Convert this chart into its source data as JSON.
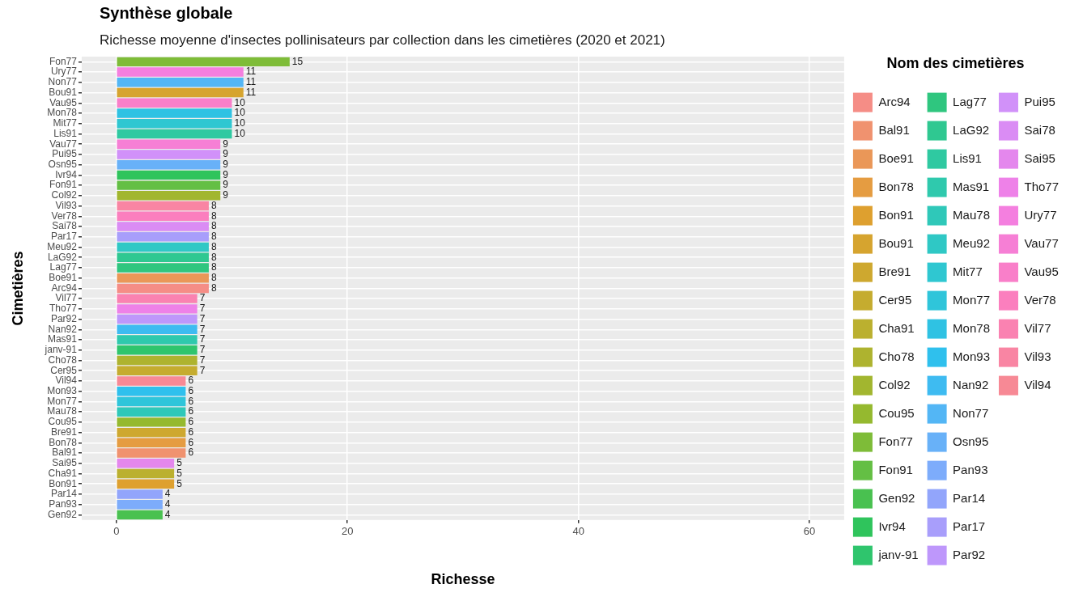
{
  "chart_data": {
    "type": "bar",
    "orientation": "horizontal",
    "title": "Synthèse globale",
    "subtitle": "Richesse moyenne d'insectes pollinisateurs par collection dans les cimetières (2020 et 2021)",
    "xlabel": "Richesse",
    "ylabel": "Cimetières",
    "legend_title": "Nom des cimetières",
    "legend": "right",
    "grid": true,
    "data_labels": true,
    "categories": [
      "Fon77",
      "Ury77",
      "Non77",
      "Bou91",
      "Vau95",
      "Mon78",
      "Mit77",
      "Lis91",
      "Vau77",
      "Pui95",
      "Osn95",
      "Ivr94",
      "Fon91",
      "Col92",
      "Vil93",
      "Ver78",
      "Sai78",
      "Par17",
      "Meu92",
      "LaG92",
      "Lag77",
      "Boe91",
      "Arc94",
      "Vil77",
      "Tho77",
      "Par92",
      "Nan92",
      "Mas91",
      "janv-91",
      "Cho78",
      "Cer95",
      "Vil94",
      "Mon93",
      "Mon77",
      "Mau78",
      "Cou95",
      "Bre91",
      "Bon78",
      "Bal91",
      "Sai95",
      "Cha91",
      "Bon91",
      "Par14",
      "Pan93",
      "Gen92"
    ],
    "series": [
      {
        "name": "Arc94",
        "color": "#F58D86",
        "values": [
          null,
          null,
          null,
          null,
          null,
          null,
          null,
          null,
          null,
          null,
          null,
          null,
          null,
          null,
          null,
          null,
          null,
          null,
          null,
          null,
          null,
          null,
          8,
          null,
          null,
          null,
          null,
          null,
          null,
          null,
          null,
          null,
          null,
          null,
          null,
          null,
          null,
          null,
          null,
          null,
          null,
          null,
          null,
          null,
          null
        ]
      },
      {
        "name": "Bal91",
        "color": "#F0926F",
        "values": [
          null,
          null,
          null,
          null,
          null,
          null,
          null,
          null,
          null,
          null,
          null,
          null,
          null,
          null,
          null,
          null,
          null,
          null,
          null,
          null,
          null,
          null,
          null,
          null,
          null,
          null,
          null,
          null,
          null,
          null,
          null,
          null,
          null,
          null,
          null,
          null,
          null,
          null,
          6,
          null,
          null,
          null,
          null,
          null,
          null
        ]
      },
      {
        "name": "Boe91",
        "color": "#EA9758",
        "values": [
          null,
          null,
          null,
          null,
          null,
          null,
          null,
          null,
          null,
          null,
          null,
          null,
          null,
          null,
          null,
          null,
          null,
          null,
          null,
          null,
          null,
          8,
          null,
          null,
          null,
          null,
          null,
          null,
          null,
          null,
          null,
          null,
          null,
          null,
          null,
          null,
          null,
          null,
          null,
          null,
          null,
          null,
          null,
          null,
          null
        ]
      },
      {
        "name": "Bon78",
        "color": "#E59C41",
        "values": [
          null,
          null,
          null,
          null,
          null,
          null,
          null,
          null,
          null,
          null,
          null,
          null,
          null,
          null,
          null,
          null,
          null,
          null,
          null,
          null,
          null,
          null,
          null,
          null,
          null,
          null,
          null,
          null,
          null,
          null,
          null,
          null,
          null,
          null,
          null,
          null,
          null,
          6,
          null,
          null,
          null,
          null,
          null,
          null,
          null
        ]
      },
      {
        "name": "Bon91",
        "color": "#DEA02F",
        "values": [
          null,
          null,
          null,
          null,
          null,
          null,
          null,
          null,
          null,
          null,
          null,
          null,
          null,
          null,
          null,
          null,
          null,
          null,
          null,
          null,
          null,
          null,
          null,
          null,
          null,
          null,
          null,
          null,
          null,
          null,
          null,
          null,
          null,
          null,
          null,
          null,
          null,
          null,
          null,
          null,
          null,
          5,
          null,
          null,
          null
        ]
      },
      {
        "name": "Bou91",
        "color": "#D6A42F",
        "values": [
          null,
          null,
          null,
          11,
          null,
          null,
          null,
          null,
          null,
          null,
          null,
          null,
          null,
          null,
          null,
          null,
          null,
          null,
          null,
          null,
          null,
          null,
          null,
          null,
          null,
          null,
          null,
          null,
          null,
          null,
          null,
          null,
          null,
          null,
          null,
          null,
          null,
          null,
          null,
          null,
          null,
          null,
          null,
          null,
          null
        ]
      },
      {
        "name": "Bre91",
        "color": "#CEA82F",
        "values": [
          null,
          null,
          null,
          null,
          null,
          null,
          null,
          null,
          null,
          null,
          null,
          null,
          null,
          null,
          null,
          null,
          null,
          null,
          null,
          null,
          null,
          null,
          null,
          null,
          null,
          null,
          null,
          null,
          null,
          null,
          null,
          null,
          null,
          null,
          null,
          null,
          6,
          null,
          null,
          null,
          null,
          null,
          null,
          null,
          null
        ]
      },
      {
        "name": "Cer95",
        "color": "#C5AC2F",
        "values": [
          null,
          null,
          null,
          null,
          null,
          null,
          null,
          null,
          null,
          null,
          null,
          null,
          null,
          null,
          null,
          null,
          null,
          null,
          null,
          null,
          null,
          null,
          null,
          null,
          null,
          null,
          null,
          null,
          null,
          null,
          7,
          null,
          null,
          null,
          null,
          null,
          null,
          null,
          null,
          null,
          null,
          null,
          null,
          null,
          null
        ]
      },
      {
        "name": "Cha91",
        "color": "#BBB02F",
        "values": [
          null,
          null,
          null,
          null,
          null,
          null,
          null,
          null,
          null,
          null,
          null,
          null,
          null,
          null,
          null,
          null,
          null,
          null,
          null,
          null,
          null,
          null,
          null,
          null,
          null,
          null,
          null,
          null,
          null,
          null,
          null,
          null,
          null,
          null,
          null,
          null,
          null,
          null,
          null,
          null,
          5,
          null,
          null,
          null,
          null
        ]
      },
      {
        "name": "Cho78",
        "color": "#AEB32F",
        "values": [
          null,
          null,
          null,
          null,
          null,
          null,
          null,
          null,
          null,
          null,
          null,
          null,
          null,
          null,
          null,
          null,
          null,
          null,
          null,
          null,
          null,
          null,
          null,
          null,
          null,
          null,
          null,
          null,
          null,
          7,
          null,
          null,
          null,
          null,
          null,
          null,
          null,
          null,
          null,
          null,
          null,
          null,
          null,
          null,
          null
        ]
      },
      {
        "name": "Col92",
        "color": "#A2B62F",
        "values": [
          null,
          null,
          null,
          null,
          null,
          null,
          null,
          null,
          null,
          null,
          null,
          null,
          null,
          9,
          null,
          null,
          null,
          null,
          null,
          null,
          null,
          null,
          null,
          null,
          null,
          null,
          null,
          null,
          null,
          null,
          null,
          null,
          null,
          null,
          null,
          null,
          null,
          null,
          null,
          null,
          null,
          null,
          null,
          null,
          null
        ]
      },
      {
        "name": "Cou95",
        "color": "#95B92F",
        "values": [
          null,
          null,
          null,
          null,
          null,
          null,
          null,
          null,
          null,
          null,
          null,
          null,
          null,
          null,
          null,
          null,
          null,
          null,
          null,
          null,
          null,
          null,
          null,
          null,
          null,
          null,
          null,
          null,
          null,
          null,
          null,
          null,
          null,
          null,
          null,
          6,
          null,
          null,
          null,
          null,
          null,
          null,
          null,
          null,
          null
        ]
      },
      {
        "name": "Fon77",
        "color": "#7EBC38",
        "values": [
          15,
          null,
          null,
          null,
          null,
          null,
          null,
          null,
          null,
          null,
          null,
          null,
          null,
          null,
          null,
          null,
          null,
          null,
          null,
          null,
          null,
          null,
          null,
          null,
          null,
          null,
          null,
          null,
          null,
          null,
          null,
          null,
          null,
          null,
          null,
          null,
          null,
          null,
          null,
          null,
          null,
          null,
          null,
          null,
          null
        ]
      },
      {
        "name": "Fon91",
        "color": "#64BF44",
        "values": [
          null,
          null,
          null,
          null,
          null,
          null,
          null,
          null,
          null,
          null,
          null,
          null,
          9,
          null,
          null,
          null,
          null,
          null,
          null,
          null,
          null,
          null,
          null,
          null,
          null,
          null,
          null,
          null,
          null,
          null,
          null,
          null,
          null,
          null,
          null,
          null,
          null,
          null,
          null,
          null,
          null,
          null,
          null,
          null,
          null
        ]
      },
      {
        "name": "Gen92",
        "color": "#49C150",
        "values": [
          null,
          null,
          null,
          null,
          null,
          null,
          null,
          null,
          null,
          null,
          null,
          null,
          null,
          null,
          null,
          null,
          null,
          null,
          null,
          null,
          null,
          null,
          null,
          null,
          null,
          null,
          null,
          null,
          null,
          null,
          null,
          null,
          null,
          null,
          null,
          null,
          null,
          null,
          null,
          null,
          null,
          null,
          null,
          null,
          4
        ]
      },
      {
        "name": "Ivr94",
        "color": "#2FC45C",
        "values": [
          null,
          null,
          null,
          null,
          null,
          null,
          null,
          null,
          null,
          null,
          null,
          9,
          null,
          null,
          null,
          null,
          null,
          null,
          null,
          null,
          null,
          null,
          null,
          null,
          null,
          null,
          null,
          null,
          null,
          null,
          null,
          null,
          null,
          null,
          null,
          null,
          null,
          null,
          null,
          null,
          null,
          null,
          null,
          null,
          null
        ]
      },
      {
        "name": "janv-91",
        "color": "#2FC56D",
        "values": [
          null,
          null,
          null,
          null,
          null,
          null,
          null,
          null,
          null,
          null,
          null,
          null,
          null,
          null,
          null,
          null,
          null,
          null,
          null,
          null,
          null,
          null,
          null,
          null,
          null,
          null,
          null,
          null,
          7,
          null,
          null,
          null,
          null,
          null,
          null,
          null,
          null,
          null,
          null,
          null,
          null,
          null,
          null,
          null,
          null
        ]
      },
      {
        "name": "Lag77",
        "color": "#2FC67F",
        "values": [
          null,
          null,
          null,
          null,
          null,
          null,
          null,
          null,
          null,
          null,
          null,
          null,
          null,
          null,
          null,
          null,
          null,
          null,
          null,
          null,
          8,
          null,
          null,
          null,
          null,
          null,
          null,
          null,
          null,
          null,
          null,
          null,
          null,
          null,
          null,
          null,
          null,
          null,
          null,
          null,
          null,
          null,
          null,
          null,
          null
        ]
      },
      {
        "name": "LaG92",
        "color": "#2FC891",
        "values": [
          null,
          null,
          null,
          null,
          null,
          null,
          null,
          null,
          null,
          null,
          null,
          null,
          null,
          null,
          null,
          null,
          null,
          null,
          null,
          8,
          null,
          null,
          null,
          null,
          null,
          null,
          null,
          null,
          null,
          null,
          null,
          null,
          null,
          null,
          null,
          null,
          null,
          null,
          null,
          null,
          null,
          null,
          null,
          null,
          null
        ]
      },
      {
        "name": "Lis91",
        "color": "#2FC9A1",
        "values": [
          null,
          null,
          null,
          null,
          null,
          null,
          null,
          10,
          null,
          null,
          null,
          null,
          null,
          null,
          null,
          null,
          null,
          null,
          null,
          null,
          null,
          null,
          null,
          null,
          null,
          null,
          null,
          null,
          null,
          null,
          null,
          null,
          null,
          null,
          null,
          null,
          null,
          null,
          null,
          null,
          null,
          null,
          null,
          null,
          null
        ]
      },
      {
        "name": "Mas91",
        "color": "#2FC9AD",
        "values": [
          null,
          null,
          null,
          null,
          null,
          null,
          null,
          null,
          null,
          null,
          null,
          null,
          null,
          null,
          null,
          null,
          null,
          null,
          null,
          null,
          null,
          null,
          null,
          null,
          null,
          null,
          null,
          7,
          null,
          null,
          null,
          null,
          null,
          null,
          null,
          null,
          null,
          null,
          null,
          null,
          null,
          null,
          null,
          null,
          null
        ]
      },
      {
        "name": "Mau78",
        "color": "#2FC8B9",
        "values": [
          null,
          null,
          null,
          null,
          null,
          null,
          null,
          null,
          null,
          null,
          null,
          null,
          null,
          null,
          null,
          null,
          null,
          null,
          null,
          null,
          null,
          null,
          null,
          null,
          null,
          null,
          null,
          null,
          null,
          null,
          null,
          null,
          null,
          null,
          6,
          null,
          null,
          null,
          null,
          null,
          null,
          null,
          null,
          null,
          null
        ]
      },
      {
        "name": "Meu92",
        "color": "#2FC8C5",
        "values": [
          null,
          null,
          null,
          null,
          null,
          null,
          null,
          null,
          null,
          null,
          null,
          null,
          null,
          null,
          null,
          null,
          null,
          null,
          8,
          null,
          null,
          null,
          null,
          null,
          null,
          null,
          null,
          null,
          null,
          null,
          null,
          null,
          null,
          null,
          null,
          null,
          null,
          null,
          null,
          null,
          null,
          null,
          null,
          null,
          null
        ]
      },
      {
        "name": "Mit77",
        "color": "#2FC7D1",
        "values": [
          null,
          null,
          null,
          null,
          null,
          null,
          10,
          null,
          null,
          null,
          null,
          null,
          null,
          null,
          null,
          null,
          null,
          null,
          null,
          null,
          null,
          null,
          null,
          null,
          null,
          null,
          null,
          null,
          null,
          null,
          null,
          null,
          null,
          null,
          null,
          null,
          null,
          null,
          null,
          null,
          null,
          null,
          null,
          null,
          null
        ]
      },
      {
        "name": "Mon77",
        "color": "#2FC5DA",
        "values": [
          null,
          null,
          null,
          null,
          null,
          null,
          null,
          null,
          null,
          null,
          null,
          null,
          null,
          null,
          null,
          null,
          null,
          null,
          null,
          null,
          null,
          null,
          null,
          null,
          null,
          null,
          null,
          null,
          null,
          null,
          null,
          null,
          null,
          6,
          null,
          null,
          null,
          null,
          null,
          null,
          null,
          null,
          null,
          null,
          null
        ]
      },
      {
        "name": "Mon78",
        "color": "#2FC2E3",
        "values": [
          null,
          null,
          null,
          null,
          null,
          10,
          null,
          null,
          null,
          null,
          null,
          null,
          null,
          null,
          null,
          null,
          null,
          null,
          null,
          null,
          null,
          null,
          null,
          null,
          null,
          null,
          null,
          null,
          null,
          null,
          null,
          null,
          null,
          null,
          null,
          null,
          null,
          null,
          null,
          null,
          null,
          null,
          null,
          null,
          null
        ]
      },
      {
        "name": "Mon93",
        "color": "#2FC0ED",
        "values": [
          null,
          null,
          null,
          null,
          null,
          null,
          null,
          null,
          null,
          null,
          null,
          null,
          null,
          null,
          null,
          null,
          null,
          null,
          null,
          null,
          null,
          null,
          null,
          null,
          null,
          null,
          null,
          null,
          null,
          null,
          null,
          null,
          6,
          null,
          null,
          null,
          null,
          null,
          null,
          null,
          null,
          null,
          null,
          null,
          null
        ]
      },
      {
        "name": "Nan92",
        "color": "#3EBBF1",
        "values": [
          null,
          null,
          null,
          null,
          null,
          null,
          null,
          null,
          null,
          null,
          null,
          null,
          null,
          null,
          null,
          null,
          null,
          null,
          null,
          null,
          null,
          null,
          null,
          null,
          null,
          null,
          7,
          null,
          null,
          null,
          null,
          null,
          null,
          null,
          null,
          null,
          null,
          null,
          null,
          null,
          null,
          null,
          null,
          null,
          null
        ]
      },
      {
        "name": "Non77",
        "color": "#53B6F5",
        "values": [
          null,
          null,
          11,
          null,
          null,
          null,
          null,
          null,
          null,
          null,
          null,
          null,
          null,
          null,
          null,
          null,
          null,
          null,
          null,
          null,
          null,
          null,
          null,
          null,
          null,
          null,
          null,
          null,
          null,
          null,
          null,
          null,
          null,
          null,
          null,
          null,
          null,
          null,
          null,
          null,
          null,
          null,
          null,
          null,
          null
        ]
      },
      {
        "name": "Osn95",
        "color": "#68B1F8",
        "values": [
          null,
          null,
          null,
          null,
          null,
          null,
          null,
          null,
          null,
          null,
          9,
          null,
          null,
          null,
          null,
          null,
          null,
          null,
          null,
          null,
          null,
          null,
          null,
          null,
          null,
          null,
          null,
          null,
          null,
          null,
          null,
          null,
          null,
          null,
          null,
          null,
          null,
          null,
          null,
          null,
          null,
          null,
          null,
          null,
          null
        ]
      },
      {
        "name": "Pan93",
        "color": "#7DACFB",
        "values": [
          null,
          null,
          null,
          null,
          null,
          null,
          null,
          null,
          null,
          null,
          null,
          null,
          null,
          null,
          null,
          null,
          null,
          null,
          null,
          null,
          null,
          null,
          null,
          null,
          null,
          null,
          null,
          null,
          null,
          null,
          null,
          null,
          null,
          null,
          null,
          null,
          null,
          null,
          null,
          null,
          null,
          null,
          null,
          4,
          null
        ]
      },
      {
        "name": "Par14",
        "color": "#92A5FB",
        "values": [
          null,
          null,
          null,
          null,
          null,
          null,
          null,
          null,
          null,
          null,
          null,
          null,
          null,
          null,
          null,
          null,
          null,
          null,
          null,
          null,
          null,
          null,
          null,
          null,
          null,
          null,
          null,
          null,
          null,
          null,
          null,
          null,
          null,
          null,
          null,
          null,
          null,
          null,
          null,
          null,
          null,
          null,
          4,
          null,
          null
        ]
      },
      {
        "name": "Par17",
        "color": "#A89EFB",
        "values": [
          null,
          null,
          null,
          null,
          null,
          null,
          null,
          null,
          null,
          null,
          null,
          null,
          null,
          null,
          null,
          null,
          null,
          8,
          null,
          null,
          null,
          null,
          null,
          null,
          null,
          null,
          null,
          null,
          null,
          null,
          null,
          null,
          null,
          null,
          null,
          null,
          null,
          null,
          null,
          null,
          null,
          null,
          null,
          null,
          null
        ]
      },
      {
        "name": "Par92",
        "color": "#BE97FB",
        "values": [
          null,
          null,
          null,
          null,
          null,
          null,
          null,
          null,
          null,
          null,
          null,
          null,
          null,
          null,
          null,
          null,
          null,
          null,
          null,
          null,
          null,
          null,
          null,
          null,
          null,
          7,
          null,
          null,
          null,
          null,
          null,
          null,
          null,
          null,
          null,
          null,
          null,
          null,
          null,
          null,
          null,
          null,
          null,
          null,
          null
        ]
      },
      {
        "name": "Pui95",
        "color": "#D191F9",
        "values": [
          null,
          null,
          null,
          null,
          null,
          null,
          null,
          null,
          null,
          9,
          null,
          null,
          null,
          null,
          null,
          null,
          null,
          null,
          null,
          null,
          null,
          null,
          null,
          null,
          null,
          null,
          null,
          null,
          null,
          null,
          null,
          null,
          null,
          null,
          null,
          null,
          null,
          null,
          null,
          null,
          null,
          null,
          null,
          null,
          null
        ]
      },
      {
        "name": "Sai78",
        "color": "#DA8CF4",
        "values": [
          null,
          null,
          null,
          null,
          null,
          null,
          null,
          null,
          null,
          null,
          null,
          null,
          null,
          null,
          null,
          null,
          8,
          null,
          null,
          null,
          null,
          null,
          null,
          null,
          null,
          null,
          null,
          null,
          null,
          null,
          null,
          null,
          null,
          null,
          null,
          null,
          null,
          null,
          null,
          null,
          null,
          null,
          null,
          null,
          null
        ]
      },
      {
        "name": "Sai95",
        "color": "#E487ED",
        "values": [
          null,
          null,
          null,
          null,
          null,
          null,
          null,
          null,
          null,
          null,
          null,
          null,
          null,
          null,
          null,
          null,
          null,
          null,
          null,
          null,
          null,
          null,
          null,
          null,
          null,
          null,
          null,
          null,
          null,
          null,
          null,
          null,
          null,
          null,
          null,
          null,
          null,
          null,
          null,
          5,
          null,
          null,
          null,
          null,
          null
        ]
      },
      {
        "name": "Tho77",
        "color": "#EE81E8",
        "values": [
          null,
          null,
          null,
          null,
          null,
          null,
          null,
          null,
          null,
          null,
          null,
          null,
          null,
          null,
          null,
          null,
          null,
          null,
          null,
          null,
          null,
          null,
          null,
          null,
          7,
          null,
          null,
          null,
          null,
          null,
          null,
          null,
          null,
          null,
          null,
          null,
          null,
          null,
          null,
          null,
          null,
          null,
          null,
          null,
          null
        ]
      },
      {
        "name": "Ury77",
        "color": "#F47FDF",
        "values": [
          null,
          11,
          null,
          null,
          null,
          null,
          null,
          null,
          null,
          null,
          null,
          null,
          null,
          null,
          null,
          null,
          null,
          null,
          null,
          null,
          null,
          null,
          null,
          null,
          null,
          null,
          null,
          null,
          null,
          null,
          null,
          null,
          null,
          null,
          null,
          null,
          null,
          null,
          null,
          null,
          null,
          null,
          null,
          null,
          null
        ]
      },
      {
        "name": "Vau77",
        "color": "#F67FD5",
        "values": [
          null,
          null,
          null,
          null,
          null,
          null,
          null,
          null,
          9,
          null,
          null,
          null,
          null,
          null,
          null,
          null,
          null,
          null,
          null,
          null,
          null,
          null,
          null,
          null,
          null,
          null,
          null,
          null,
          null,
          null,
          null,
          null,
          null,
          null,
          null,
          null,
          null,
          null,
          null,
          null,
          null,
          null,
          null,
          null,
          null
        ]
      },
      {
        "name": "Vau95",
        "color": "#F97FC9",
        "values": [
          null,
          null,
          null,
          null,
          10,
          null,
          null,
          null,
          null,
          null,
          null,
          null,
          null,
          null,
          null,
          null,
          null,
          null,
          null,
          null,
          null,
          null,
          null,
          null,
          null,
          null,
          null,
          null,
          null,
          null,
          null,
          null,
          null,
          null,
          null,
          null,
          null,
          null,
          null,
          null,
          null,
          null,
          null,
          null,
          null
        ]
      },
      {
        "name": "Ver78",
        "color": "#FB7FBE",
        "values": [
          null,
          null,
          null,
          null,
          null,
          null,
          null,
          null,
          null,
          null,
          null,
          null,
          null,
          null,
          null,
          8,
          null,
          null,
          null,
          null,
          null,
          null,
          null,
          null,
          null,
          null,
          null,
          null,
          null,
          null,
          null,
          null,
          null,
          null,
          null,
          null,
          null,
          null,
          null,
          null,
          null,
          null,
          null,
          null,
          null
        ]
      },
      {
        "name": "Vil77",
        "color": "#FA82B1",
        "values": [
          null,
          null,
          null,
          null,
          null,
          null,
          null,
          null,
          null,
          null,
          null,
          null,
          null,
          null,
          null,
          null,
          null,
          null,
          null,
          null,
          null,
          null,
          null,
          7,
          null,
          null,
          null,
          null,
          null,
          null,
          null,
          null,
          null,
          null,
          null,
          null,
          null,
          null,
          null,
          null,
          null,
          null,
          null,
          null,
          null
        ]
      },
      {
        "name": "Vil93",
        "color": "#F985A3",
        "values": [
          null,
          null,
          null,
          null,
          null,
          null,
          null,
          null,
          null,
          null,
          null,
          null,
          null,
          null,
          8,
          null,
          null,
          null,
          null,
          null,
          null,
          null,
          null,
          null,
          null,
          null,
          null,
          null,
          null,
          null,
          null,
          null,
          null,
          null,
          null,
          null,
          null,
          null,
          null,
          null,
          null,
          null,
          null,
          null,
          null
        ]
      },
      {
        "name": "Vil94",
        "color": "#F78995",
        "values": [
          null,
          null,
          null,
          null,
          null,
          null,
          null,
          null,
          null,
          null,
          null,
          null,
          null,
          null,
          null,
          null,
          null,
          null,
          null,
          null,
          null,
          null,
          null,
          null,
          null,
          null,
          null,
          null,
          null,
          null,
          null,
          6,
          null,
          null,
          null,
          null,
          null,
          null,
          null,
          null,
          null,
          null,
          null,
          null,
          null
        ]
      }
    ],
    "xlim": [
      -3,
      63
    ],
    "xticks": [
      0,
      20,
      40,
      60
    ]
  }
}
